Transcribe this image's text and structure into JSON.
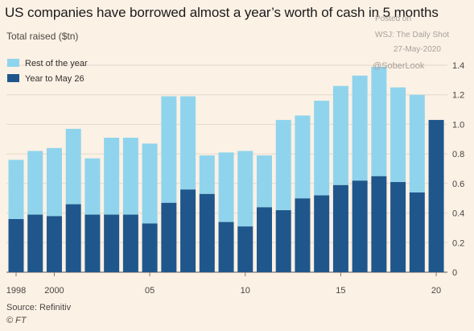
{
  "header": {
    "title": "US companies have borrowed almost a year’s worth of cash in 5 months",
    "subtitle": "Total raised ($tn)"
  },
  "watermark": {
    "posted_on": "Posted on",
    "outlet": "WSJ: The Daily Shot",
    "date": "27-May-2020",
    "handle": "@SoberLook"
  },
  "footer": {
    "source": "Source: Refinitiv",
    "copyright": "© FT"
  },
  "colors": {
    "background": "#fcf1e5",
    "rest_of_year": "#8fd4ec",
    "year_to_may": "#1f578c",
    "gridline": "#e3d8cc"
  },
  "chart_data": {
    "type": "bar",
    "stacked": true,
    "categories": [
      "1998",
      "1999",
      "2000",
      "2001",
      "2002",
      "2003",
      "2004",
      "2005",
      "2006",
      "2007",
      "2008",
      "2009",
      "2010",
      "2011",
      "2012",
      "2013",
      "2014",
      "2015",
      "2016",
      "2017",
      "2018",
      "2019",
      "2020"
    ],
    "x_tick_labels": [
      {
        "index": 0,
        "label": "1998"
      },
      {
        "index": 2,
        "label": "2000"
      },
      {
        "index": 7,
        "label": "05"
      },
      {
        "index": 12,
        "label": "10"
      },
      {
        "index": 17,
        "label": "15"
      },
      {
        "index": 22,
        "label": "20"
      }
    ],
    "series": [
      {
        "name": "Year to May 26",
        "color": "#1f578c",
        "values": [
          0.36,
          0.39,
          0.38,
          0.46,
          0.39,
          0.39,
          0.39,
          0.33,
          0.47,
          0.56,
          0.53,
          0.34,
          0.31,
          0.44,
          0.42,
          0.5,
          0.52,
          0.59,
          0.62,
          0.65,
          0.61,
          0.54,
          1.03
        ]
      },
      {
        "name": "Rest of the year",
        "color": "#8fd4ec",
        "values": [
          0.4,
          0.43,
          0.46,
          0.51,
          0.38,
          0.52,
          0.52,
          0.54,
          0.72,
          0.63,
          0.26,
          0.47,
          0.51,
          0.35,
          0.61,
          0.56,
          0.64,
          0.67,
          0.71,
          0.74,
          0.64,
          0.66,
          0
        ]
      }
    ],
    "totals": [
      0.76,
      0.82,
      0.84,
      0.97,
      0.77,
      0.91,
      0.91,
      0.87,
      1.19,
      1.19,
      0.79,
      0.81,
      0.82,
      0.79,
      1.03,
      1.06,
      1.16,
      1.26,
      1.33,
      1.39,
      1.25,
      1.2,
      1.03
    ],
    "y_ticks": [
      0,
      0.2,
      0.4,
      0.6,
      0.8,
      1.0,
      1.2,
      1.4
    ],
    "y_tick_labels": [
      "0",
      "0.2",
      "0.4",
      "0.6",
      "0.8",
      "1.0",
      "1.2",
      "1.4"
    ],
    "ylim": [
      0,
      1.4
    ],
    "ylabel": "Total raised ($tn)",
    "xlabel": "",
    "grid": true,
    "y_axis_side": "right",
    "legend": {
      "placement": "top-left",
      "entries": [
        {
          "label": "Rest of the year",
          "color": "#8fd4ec"
        },
        {
          "label": "Year to May 26",
          "color": "#1f578c"
        }
      ]
    }
  }
}
